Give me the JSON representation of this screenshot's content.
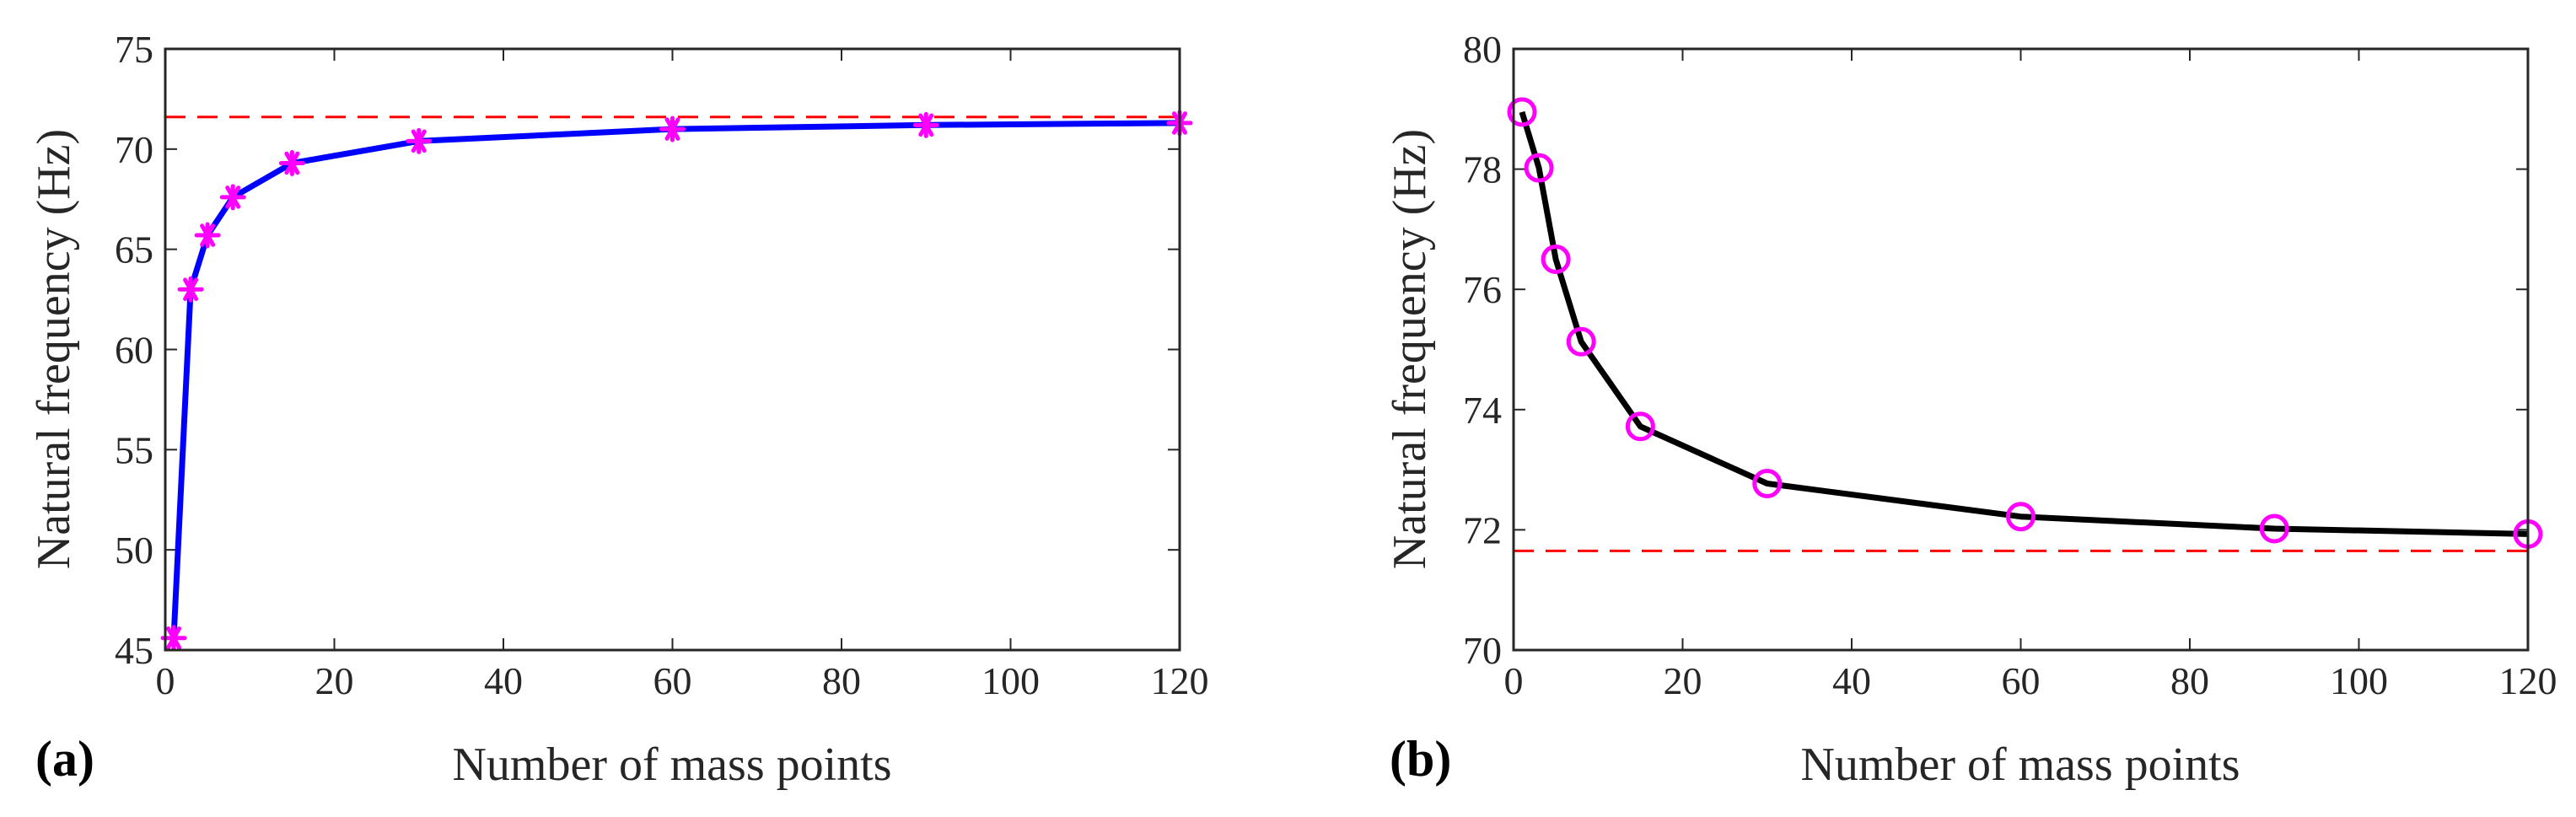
{
  "colors": {
    "series_a": "#0000ff",
    "series_b": "#000000",
    "marker": "#ff00ff",
    "reference": "#ff0000",
    "axis": "#262626"
  },
  "chart_data": [
    {
      "panel_label": "(a)",
      "type": "line",
      "xlabel": "Number of mass points",
      "ylabel": "Natural frequency (Hz)",
      "xlim": [
        0,
        120
      ],
      "ylim": [
        45,
        75
      ],
      "xticks": [
        0,
        20,
        40,
        60,
        80,
        100,
        120
      ],
      "yticks": [
        45,
        50,
        55,
        60,
        65,
        70,
        75
      ],
      "grid": false,
      "series": [
        {
          "name": "natural frequency",
          "marker": "asterisk",
          "x": [
            1,
            3,
            5,
            8,
            15,
            30,
            60,
            90,
            120
          ],
          "y": [
            45.6,
            63.0,
            65.7,
            67.6,
            69.3,
            70.4,
            71.0,
            71.2,
            71.3
          ]
        }
      ],
      "reference_line": {
        "y": 71.6,
        "style": "dashed"
      }
    },
    {
      "panel_label": "(b)",
      "type": "line",
      "xlabel": "Number of mass points",
      "ylabel": "Natural frequency (Hz)",
      "xlim": [
        0,
        120
      ],
      "ylim": [
        70,
        80
      ],
      "xticks": [
        0,
        20,
        40,
        60,
        80,
        100,
        120
      ],
      "yticks": [
        70,
        72,
        74,
        76,
        78,
        80
      ],
      "grid": false,
      "series": [
        {
          "name": "natural frequency",
          "marker": "circle",
          "x": [
            1,
            3,
            5,
            8,
            15,
            30,
            60,
            90,
            120
          ],
          "y": [
            78.95,
            78.02,
            76.5,
            75.13,
            73.72,
            72.77,
            72.22,
            72.02,
            71.93
          ]
        }
      ],
      "reference_line": {
        "y": 71.65,
        "style": "dashed"
      }
    }
  ]
}
